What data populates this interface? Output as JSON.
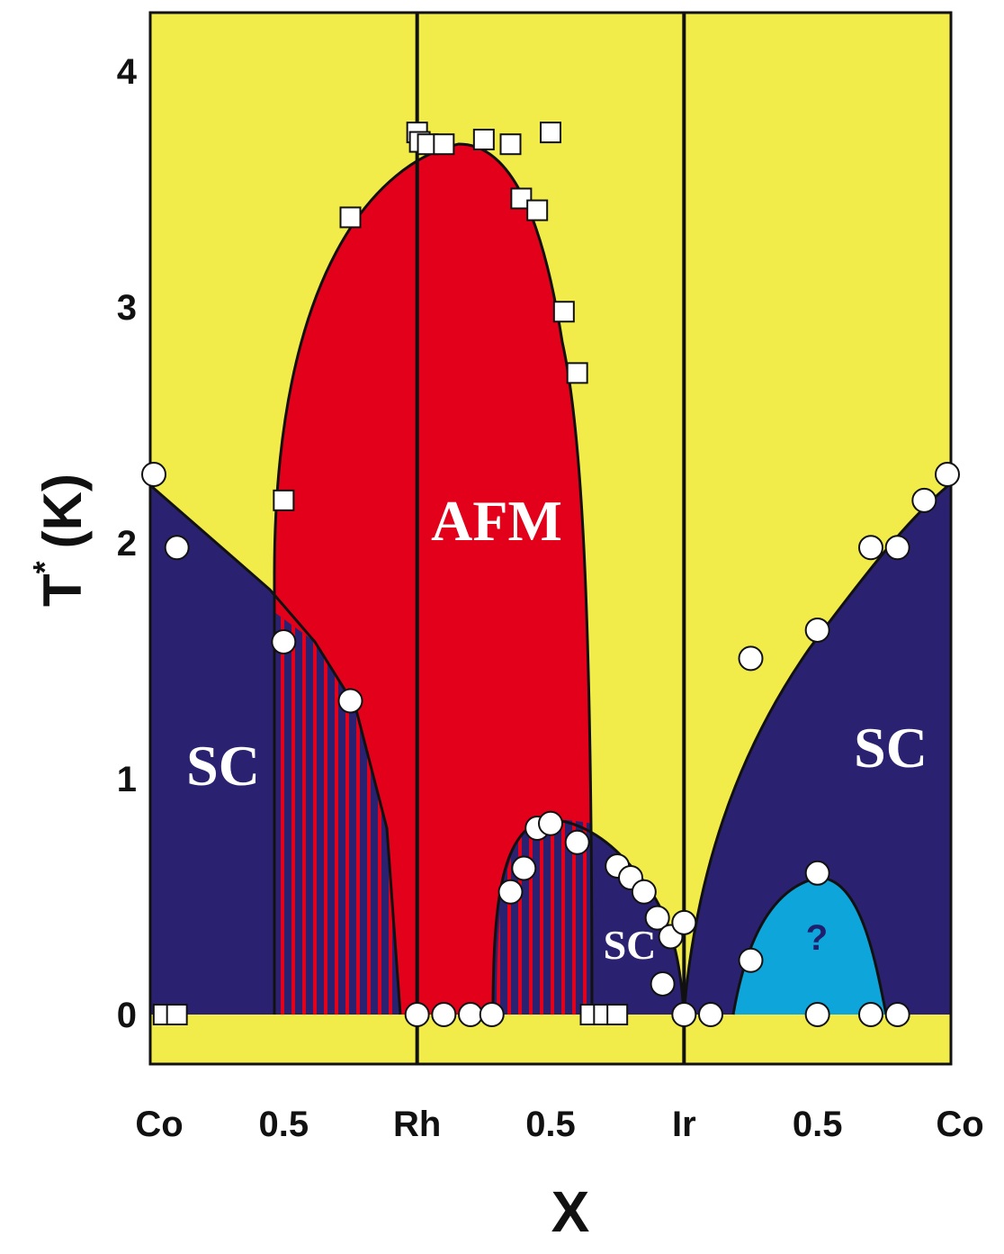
{
  "chart_data": {
    "type": "scatter",
    "title": "",
    "xlabel": "X",
    "ylabel": "T",
    "ylabel_sup": "*",
    "ylabel_unit": "(K)",
    "ylim": [
      0,
      4.2
    ],
    "yticks": [
      "0",
      "1",
      "2",
      "3",
      "4"
    ],
    "ytick_values": [
      0,
      1,
      2,
      3,
      4
    ],
    "x_segments": [
      "Co-Rh",
      "Rh-Ir",
      "Ir-Co"
    ],
    "xtick_labels": [
      "Co",
      "0.5",
      "Rh",
      "0.5",
      "Ir",
      "0.5",
      "Co"
    ],
    "xtick_positions": [
      0,
      0.5,
      1,
      1.5,
      2,
      2.5,
      3
    ],
    "xlim": [
      0,
      3
    ],
    "region_labels": {
      "afm": "AFM",
      "sc_left": "SC",
      "sc_middle": "SC",
      "sc_right": "SC",
      "unknown": "?"
    },
    "colors": {
      "paramagnetic": "#f2ec4a",
      "afm": "#e2001a",
      "sc": "#2a2270",
      "unknown_phase": "#0ea5db",
      "stripe": "#e2001a"
    },
    "series": [
      {
        "name": "AFM transition (squares)",
        "marker": "square",
        "points": [
          [
            0.05,
            0
          ],
          [
            0.1,
            0
          ],
          [
            0.5,
            2.18
          ],
          [
            0.75,
            3.38
          ],
          [
            1.0,
            3.74
          ],
          [
            1.01,
            3.7
          ],
          [
            1.04,
            3.69
          ],
          [
            1.1,
            3.69
          ],
          [
            1.25,
            3.71
          ],
          [
            1.35,
            3.69
          ],
          [
            1.39,
            3.46
          ],
          [
            1.45,
            3.41
          ],
          [
            1.5,
            3.74
          ],
          [
            1.55,
            2.98
          ],
          [
            1.6,
            2.72
          ],
          [
            1.65,
            0
          ],
          [
            1.7,
            0
          ],
          [
            1.75,
            0
          ]
        ]
      },
      {
        "name": "SC transition (circles)",
        "marker": "circle",
        "points": [
          [
            0.0,
            2.29
          ],
          [
            0.1,
            1.98
          ],
          [
            0.5,
            1.58
          ],
          [
            0.75,
            1.33
          ],
          [
            1.0,
            0
          ],
          [
            1.1,
            0
          ],
          [
            1.2,
            0
          ],
          [
            1.28,
            0
          ],
          [
            1.35,
            0.52
          ],
          [
            1.4,
            0.62
          ],
          [
            1.45,
            0.79
          ],
          [
            1.5,
            0.81
          ],
          [
            1.6,
            0.73
          ],
          [
            1.75,
            0.63
          ],
          [
            1.8,
            0.58
          ],
          [
            1.85,
            0.52
          ],
          [
            1.9,
            0.41
          ],
          [
            1.95,
            0.33
          ],
          [
            1.92,
            0.13
          ],
          [
            2.0,
            0.39
          ],
          [
            2.0,
            0
          ],
          [
            2.1,
            0
          ],
          [
            2.25,
            1.51
          ],
          [
            2.25,
            0.23
          ],
          [
            2.5,
            1.63
          ],
          [
            2.5,
            0.6
          ],
          [
            2.5,
            0
          ],
          [
            2.7,
            1.98
          ],
          [
            2.8,
            1.98
          ],
          [
            2.7,
            0
          ],
          [
            2.8,
            0
          ],
          [
            2.9,
            2.18
          ],
          [
            3.0,
            2.29
          ]
        ]
      }
    ]
  }
}
